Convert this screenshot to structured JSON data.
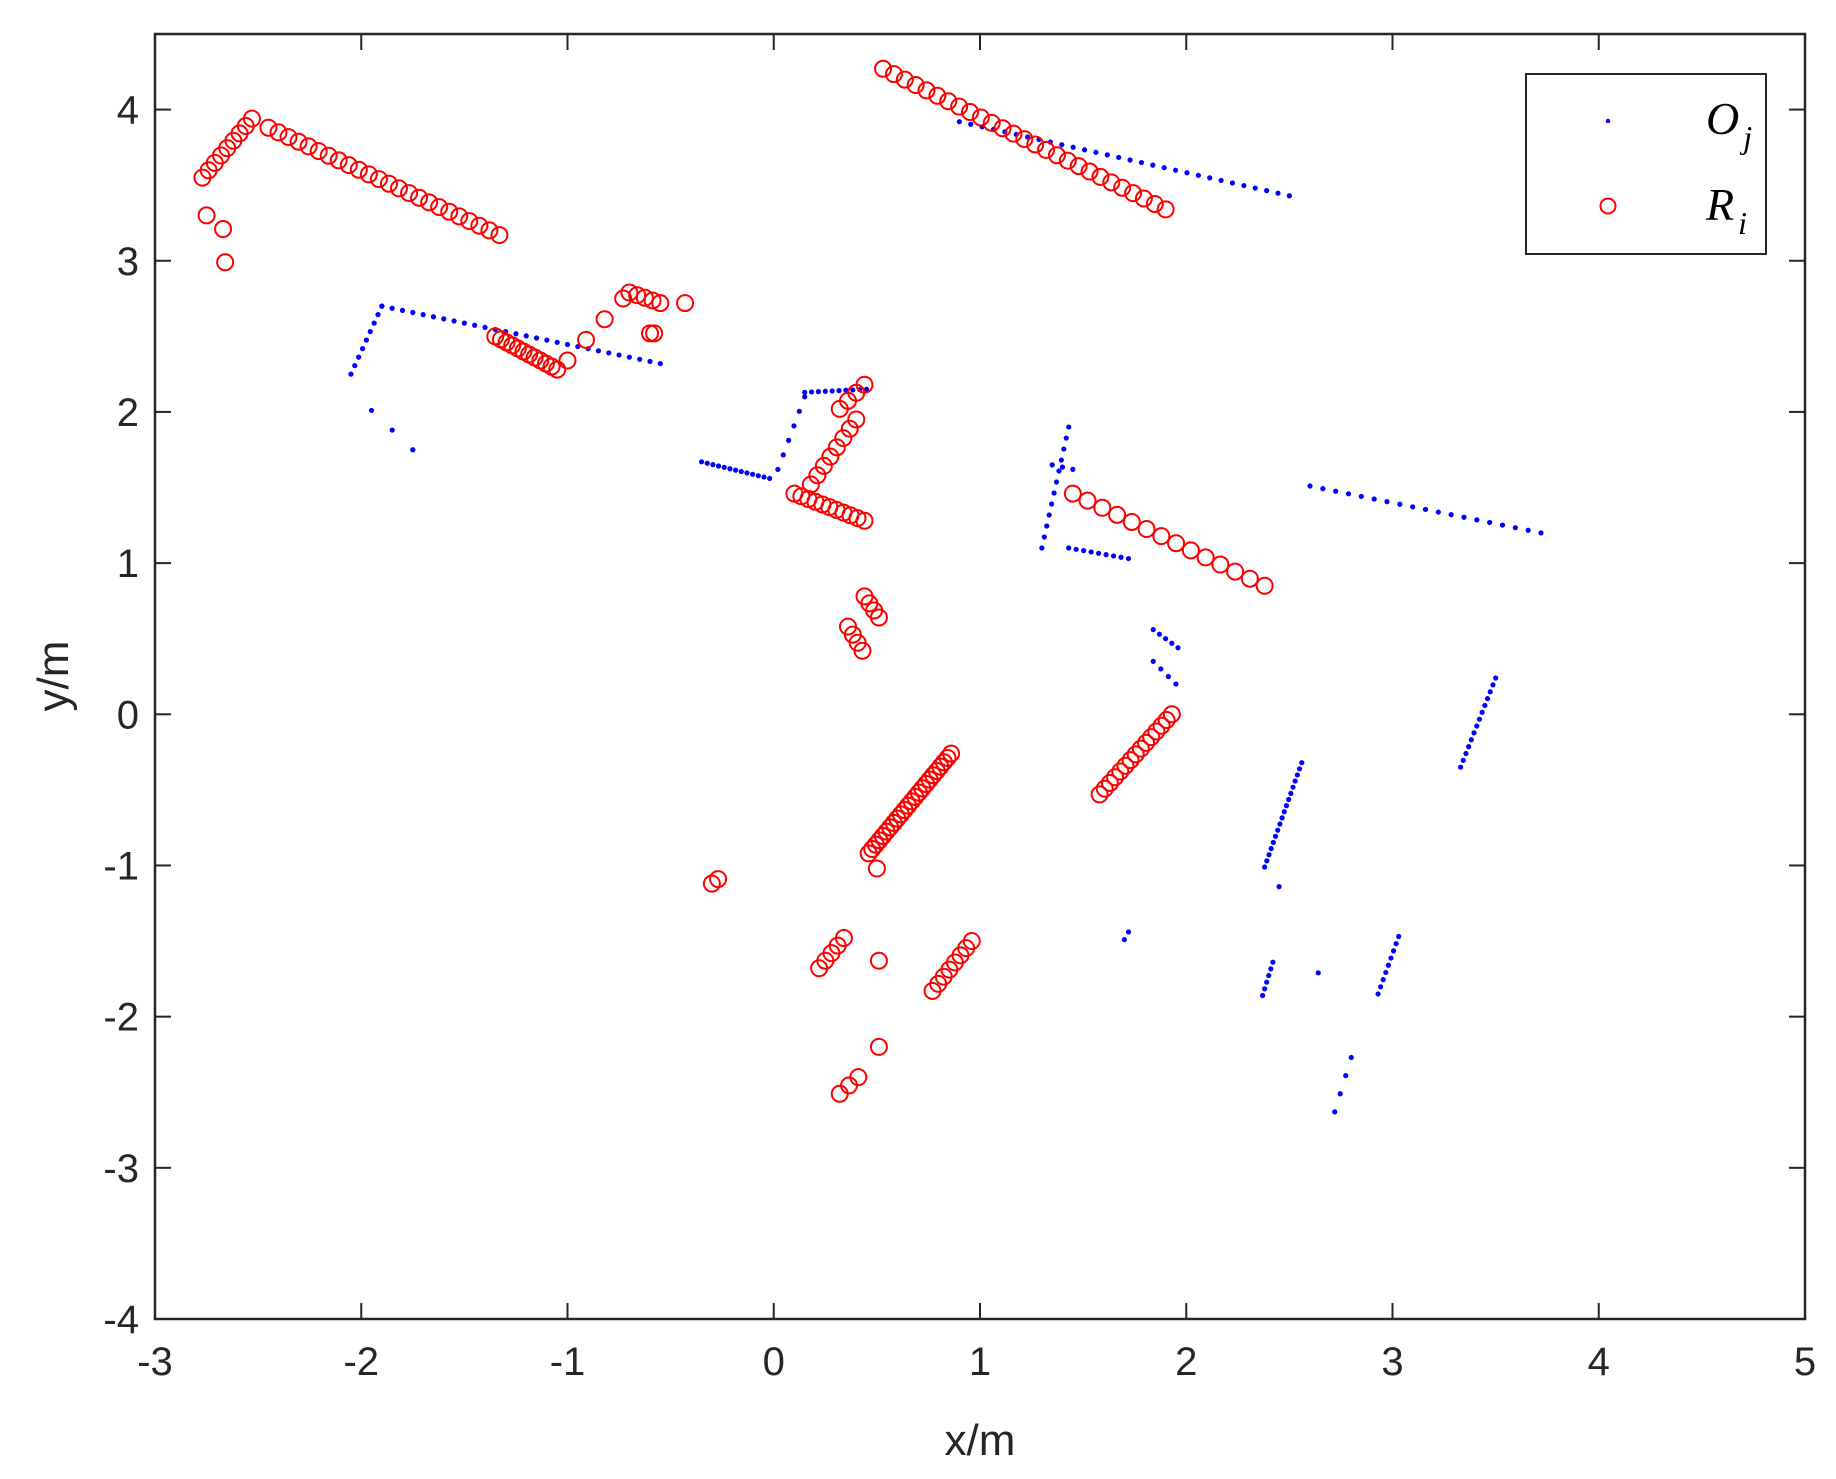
{
  "chart_data": {
    "type": "scatter",
    "xlabel": "x/m",
    "ylabel": "y/m",
    "xlim": [
      -3,
      5
    ],
    "ylim": [
      -4,
      4.5
    ],
    "xticks": [
      "-3",
      "-2",
      "-1",
      "0",
      "1",
      "2",
      "3",
      "4",
      "5"
    ],
    "yticks": [
      "-4",
      "-3",
      "-2",
      "-1",
      "0",
      "1",
      "2",
      "3",
      "4"
    ],
    "grid": false,
    "legend_position": "top-right",
    "series": [
      {
        "symbol": "O",
        "subscript": "j",
        "marker": "dot",
        "color": "#0000ff",
        "segments": [
          {
            "from": [
              0.9,
              3.92
            ],
            "to": [
              2.5,
              3.43
            ],
            "n": 30
          },
          {
            "from": [
              -2.05,
              2.25
            ],
            "to": [
              -1.9,
              2.7
            ],
            "n": 9
          },
          {
            "from": [
              -1.9,
              2.7
            ],
            "to": [
              -0.55,
              2.32
            ],
            "n": 28
          },
          {
            "from": [
              -1.95,
              2.01
            ],
            "to": [
              -1.75,
              1.75
            ],
            "n": 3
          },
          {
            "from": [
              -0.35,
              1.67
            ],
            "to": [
              -0.02,
              1.56
            ],
            "n": 13
          },
          {
            "from": [
              0.02,
              1.62
            ],
            "to": [
              0.15,
              2.1
            ],
            "n": 6
          },
          {
            "from": [
              0.15,
              2.13
            ],
            "to": [
              0.45,
              2.15
            ],
            "n": 10
          },
          {
            "from": [
              1.3,
              1.1
            ],
            "to": [
              1.43,
              1.9
            ],
            "n": 12
          },
          {
            "from": [
              1.43,
              1.1
            ],
            "to": [
              1.72,
              1.03
            ],
            "n": 9
          },
          {
            "from": [
              1.35,
              1.65
            ],
            "to": [
              1.45,
              1.62
            ],
            "n": 3
          },
          {
            "from": [
              2.6,
              1.51
            ],
            "to": [
              3.72,
              1.2
            ],
            "n": 19
          },
          {
            "from": [
              1.84,
              0.56
            ],
            "to": [
              1.96,
              0.44
            ],
            "n": 5
          },
          {
            "from": [
              1.84,
              0.35
            ],
            "to": [
              1.95,
              0.2
            ],
            "n": 4
          },
          {
            "from": [
              2.38,
              -1.01
            ],
            "to": [
              2.56,
              -0.32
            ],
            "n": 18
          },
          {
            "from": [
              2.45,
              -1.14
            ],
            "to": [
              2.45,
              -1.14
            ],
            "n": 1
          },
          {
            "from": [
              3.33,
              -0.35
            ],
            "to": [
              3.5,
              0.24
            ],
            "n": 14
          },
          {
            "from": [
              1.7,
              -1.49
            ],
            "to": [
              1.72,
              -1.44
            ],
            "n": 2
          },
          {
            "from": [
              2.37,
              -1.86
            ],
            "to": [
              2.42,
              -1.64
            ],
            "n": 6
          },
          {
            "from": [
              2.64,
              -1.71
            ],
            "to": [
              2.64,
              -1.71
            ],
            "n": 1
          },
          {
            "from": [
              2.93,
              -1.85
            ],
            "to": [
              3.03,
              -1.47
            ],
            "n": 9
          },
          {
            "from": [
              2.72,
              -2.63
            ],
            "to": [
              2.8,
              -2.27
            ],
            "n": 4
          }
        ]
      },
      {
        "symbol": "R",
        "subscript": "i",
        "marker": "circle",
        "color": "#ff0000",
        "segments": [
          {
            "from": [
              -2.77,
              3.55
            ],
            "to": [
              -2.53,
              3.94
            ],
            "n": 9
          },
          {
            "from": [
              -2.45,
              3.88
            ],
            "to": [
              -1.33,
              3.17
            ],
            "n": 24
          },
          {
            "from": [
              -2.75,
              3.3
            ],
            "to": [
              -2.75,
              3.3
            ],
            "n": 1
          },
          {
            "from": [
              -2.67,
              3.21
            ],
            "to": [
              -2.67,
              3.21
            ],
            "n": 1
          },
          {
            "from": [
              -2.66,
              2.99
            ],
            "to": [
              -2.66,
              2.99
            ],
            "n": 1
          },
          {
            "from": [
              0.53,
              4.27
            ],
            "to": [
              1.9,
              3.34
            ],
            "n": 27
          },
          {
            "from": [
              -1.35,
              2.5
            ],
            "to": [
              -1.05,
              2.28
            ],
            "n": 12
          },
          {
            "from": [
              -1.0,
              2.34
            ],
            "to": [
              -0.73,
              2.75
            ],
            "n": 4
          },
          {
            "from": [
              -0.7,
              2.79
            ],
            "to": [
              -0.55,
              2.72
            ],
            "n": 5
          },
          {
            "from": [
              -0.6,
              2.52
            ],
            "to": [
              -0.58,
              2.52
            ],
            "n": 2
          },
          {
            "from": [
              -0.43,
              2.72
            ],
            "to": [
              -0.43,
              2.72
            ],
            "n": 1
          },
          {
            "from": [
              0.1,
              1.46
            ],
            "to": [
              0.44,
              1.28
            ],
            "n": 11
          },
          {
            "from": [
              0.18,
              1.52
            ],
            "to": [
              0.4,
              1.95
            ],
            "n": 8
          },
          {
            "from": [
              0.32,
              2.02
            ],
            "to": [
              0.44,
              2.18
            ],
            "n": 4
          },
          {
            "from": [
              1.45,
              1.46
            ],
            "to": [
              2.38,
              0.85
            ],
            "n": 14
          },
          {
            "from": [
              0.44,
              0.78
            ],
            "to": [
              0.51,
              0.64
            ],
            "n": 4
          },
          {
            "from": [
              0.36,
              0.58
            ],
            "to": [
              0.43,
              0.42
            ],
            "n": 4
          },
          {
            "from": [
              1.58,
              -0.53
            ],
            "to": [
              1.93,
              0.0
            ],
            "n": 15
          },
          {
            "from": [
              0.46,
              -0.92
            ],
            "to": [
              0.86,
              -0.26
            ],
            "n": 24
          },
          {
            "from": [
              0.5,
              -1.02
            ],
            "to": [
              0.5,
              -1.02
            ],
            "n": 1
          },
          {
            "from": [
              -0.3,
              -1.12
            ],
            "to": [
              -0.27,
              -1.09
            ],
            "n": 2
          },
          {
            "from": [
              0.22,
              -1.68
            ],
            "to": [
              0.34,
              -1.48
            ],
            "n": 5
          },
          {
            "from": [
              0.51,
              -1.63
            ],
            "to": [
              0.51,
              -1.63
            ],
            "n": 1
          },
          {
            "from": [
              0.77,
              -1.83
            ],
            "to": [
              0.96,
              -1.5
            ],
            "n": 8
          },
          {
            "from": [
              0.51,
              -2.2
            ],
            "to": [
              0.51,
              -2.2
            ],
            "n": 1
          },
          {
            "from": [
              0.32,
              -2.51
            ],
            "to": [
              0.41,
              -2.4
            ],
            "n": 3
          }
        ]
      }
    ]
  }
}
